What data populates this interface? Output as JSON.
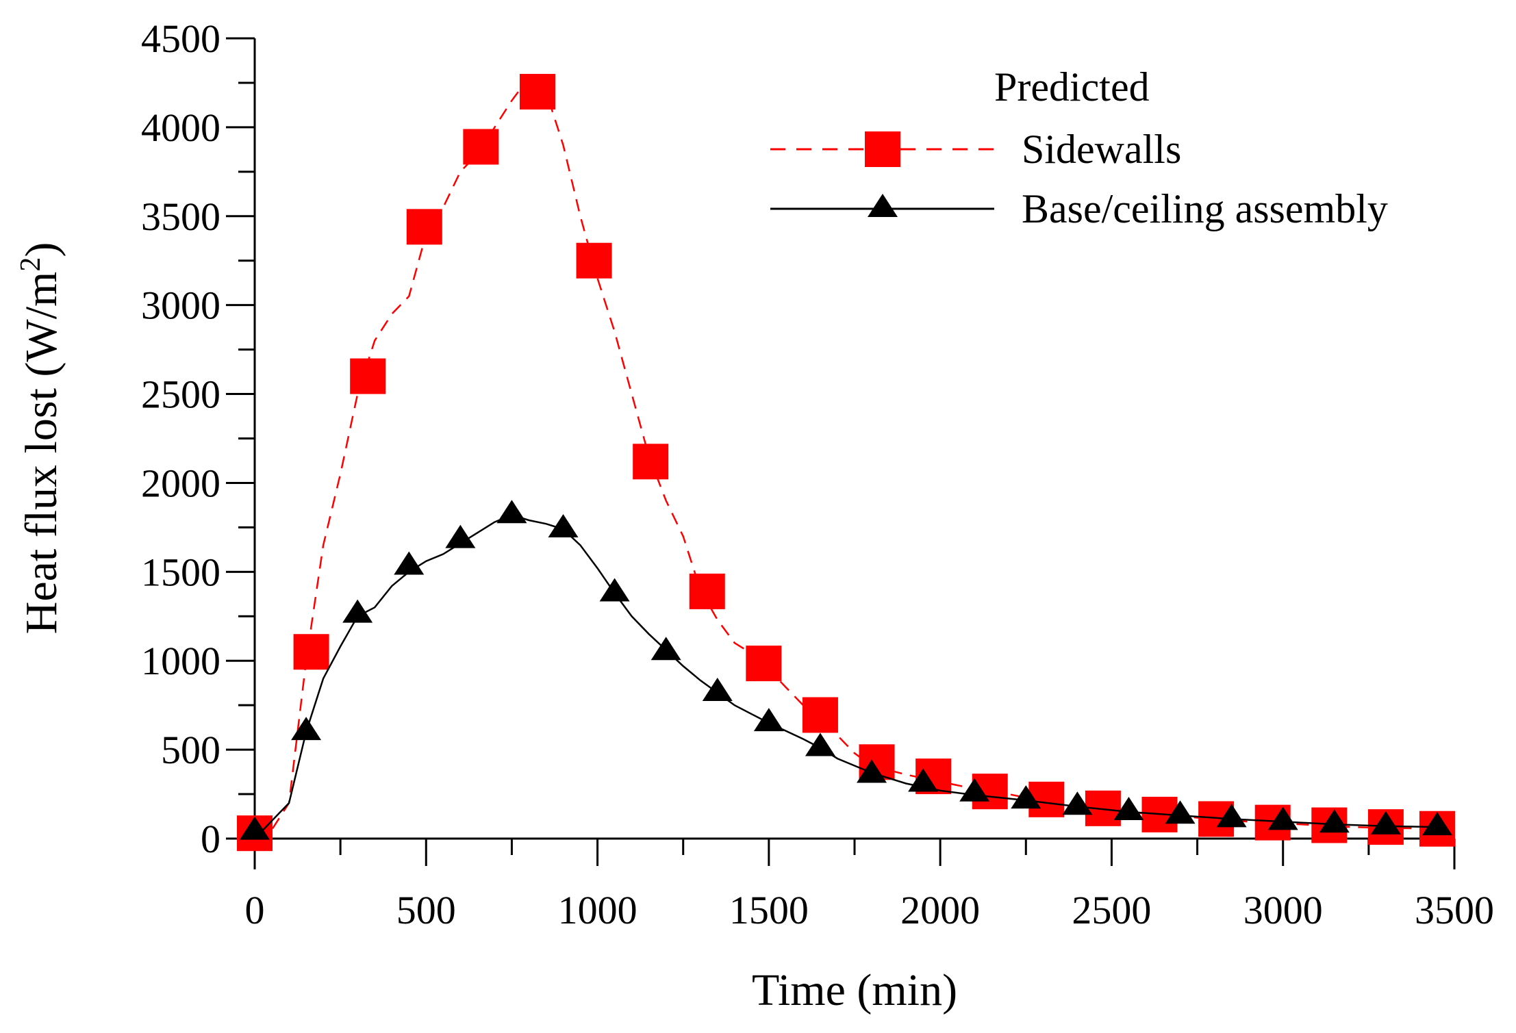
{
  "chart_data": {
    "type": "line",
    "title": "",
    "xlabel": "Time (min)",
    "ylabel": "Heat flux lost (W/m",
    "ylabel_sup": "2",
    "ylabel_tail": ")",
    "xlim": [
      0,
      3500
    ],
    "ylim": [
      0,
      4500
    ],
    "x_ticks": [
      0,
      500,
      1000,
      1500,
      2000,
      2500,
      3000,
      3500
    ],
    "y_ticks": [
      0,
      500,
      1000,
      1500,
      2000,
      2500,
      3000,
      3500,
      4000,
      4500
    ],
    "x_tick_labels": [
      "0",
      "500",
      "1000",
      "1500",
      "2000",
      "2500",
      "3000",
      "3500"
    ],
    "y_tick_labels": [
      "0",
      "500",
      "1000",
      "1500",
      "2000",
      "2500",
      "3000",
      "3500",
      "4000",
      "4500"
    ],
    "grid": false,
    "legend": {
      "title": "Predicted",
      "position": "top-right"
    },
    "series": [
      {
        "name": "Sidewalls",
        "color": "#ff0000",
        "line_style": "dashed",
        "marker": "square",
        "line": [
          [
            0,
            0
          ],
          [
            50,
            50
          ],
          [
            100,
            200
          ],
          [
            150,
            1000
          ],
          [
            200,
            1650
          ],
          [
            250,
            2050
          ],
          [
            300,
            2500
          ],
          [
            350,
            2800
          ],
          [
            400,
            2950
          ],
          [
            450,
            3050
          ],
          [
            500,
            3400
          ],
          [
            550,
            3550
          ],
          [
            600,
            3750
          ],
          [
            650,
            3850
          ],
          [
            700,
            4000
          ],
          [
            750,
            4150
          ],
          [
            800,
            4280
          ],
          [
            850,
            4200
          ],
          [
            900,
            3900
          ],
          [
            950,
            3500
          ],
          [
            1000,
            3150
          ],
          [
            1050,
            2850
          ],
          [
            1100,
            2500
          ],
          [
            1150,
            2150
          ],
          [
            1200,
            1900
          ],
          [
            1250,
            1700
          ],
          [
            1300,
            1400
          ],
          [
            1350,
            1230
          ],
          [
            1400,
            1100
          ],
          [
            1450,
            1040
          ],
          [
            1500,
            950
          ],
          [
            1550,
            850
          ],
          [
            1600,
            750
          ],
          [
            1650,
            690
          ],
          [
            1700,
            580
          ],
          [
            1750,
            480
          ],
          [
            1800,
            410
          ],
          [
            1900,
            360
          ],
          [
            2000,
            320
          ],
          [
            2100,
            280
          ],
          [
            2200,
            250
          ],
          [
            2300,
            210
          ],
          [
            2400,
            185
          ],
          [
            2500,
            160
          ],
          [
            2600,
            140
          ],
          [
            2700,
            125
          ],
          [
            2800,
            110
          ],
          [
            2900,
            95
          ],
          [
            3000,
            85
          ],
          [
            3100,
            75
          ],
          [
            3200,
            65
          ],
          [
            3300,
            60
          ],
          [
            3450,
            55
          ]
        ],
        "x": [
          0,
          165,
          330,
          495,
          660,
          825,
          990,
          1155,
          1320,
          1485,
          1650,
          1815,
          1980,
          2145,
          2310,
          2475,
          2640,
          2805,
          2970,
          3135,
          3300,
          3450
        ],
        "values": [
          30,
          1050,
          2600,
          3440,
          3890,
          4200,
          3250,
          2120,
          1390,
          985,
          695,
          430,
          350,
          265,
          220,
          170,
          135,
          110,
          90,
          75,
          65,
          55
        ]
      },
      {
        "name": "Base/ceiling assembly",
        "color": "#000000",
        "line_style": "solid",
        "marker": "triangle",
        "line": [
          [
            0,
            0
          ],
          [
            50,
            100
          ],
          [
            100,
            200
          ],
          [
            150,
            600
          ],
          [
            200,
            900
          ],
          [
            250,
            1080
          ],
          [
            300,
            1250
          ],
          [
            350,
            1300
          ],
          [
            400,
            1420
          ],
          [
            450,
            1500
          ],
          [
            500,
            1560
          ],
          [
            550,
            1600
          ],
          [
            600,
            1660
          ],
          [
            650,
            1720
          ],
          [
            700,
            1780
          ],
          [
            750,
            1820
          ],
          [
            800,
            1790
          ],
          [
            850,
            1770
          ],
          [
            900,
            1740
          ],
          [
            950,
            1650
          ],
          [
            1000,
            1520
          ],
          [
            1050,
            1380
          ],
          [
            1100,
            1250
          ],
          [
            1150,
            1150
          ],
          [
            1200,
            1060
          ],
          [
            1250,
            970
          ],
          [
            1300,
            890
          ],
          [
            1350,
            820
          ],
          [
            1400,
            750
          ],
          [
            1450,
            700
          ],
          [
            1500,
            650
          ],
          [
            1600,
            560
          ],
          [
            1650,
            510
          ],
          [
            1700,
            450
          ],
          [
            1800,
            370
          ],
          [
            1900,
            310
          ],
          [
            2000,
            270
          ],
          [
            2100,
            245
          ],
          [
            2250,
            215
          ],
          [
            2400,
            180
          ],
          [
            2550,
            150
          ],
          [
            2700,
            130
          ],
          [
            2850,
            110
          ],
          [
            3000,
            95
          ],
          [
            3150,
            80
          ],
          [
            3300,
            70
          ],
          [
            3450,
            65
          ]
        ],
        "x": [
          0,
          150,
          300,
          450,
          600,
          750,
          900,
          1050,
          1200,
          1350,
          1500,
          1650,
          1800,
          1950,
          2100,
          2250,
          2400,
          2550,
          2700,
          2850,
          3000,
          3150,
          3300,
          3450
        ],
        "values": [
          40,
          600,
          1260,
          1530,
          1680,
          1820,
          1740,
          1380,
          1050,
          820,
          650,
          510,
          360,
          310,
          255,
          215,
          180,
          150,
          130,
          110,
          95,
          80,
          70,
          65
        ]
      }
    ]
  }
}
